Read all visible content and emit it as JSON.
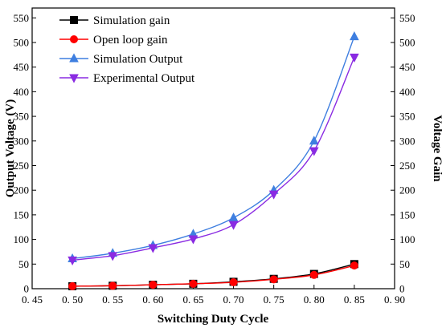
{
  "chart_data": {
    "type": "line",
    "xlabel": "Switching Duty Cycle",
    "ylabel_left": "Output Voltage (V)",
    "ylabel_right": "Voltage Gain",
    "xlim": [
      0.45,
      0.9
    ],
    "ylim": [
      0,
      570
    ],
    "x_ticks": [
      "0. 45",
      "0. 50",
      "0. 55",
      "0. 60",
      "0. 65",
      "0. 70",
      "0. 75",
      "0. 80",
      "0. 85",
      "0. 90"
    ],
    "x_tick_values": [
      0.45,
      0.5,
      0.55,
      0.6,
      0.65,
      0.7,
      0.75,
      0.8,
      0.85,
      0.9
    ],
    "y_ticks": [
      0,
      50,
      100,
      150,
      200,
      250,
      300,
      350,
      400,
      450,
      500,
      550
    ],
    "grid": false,
    "legend_position": "top-left",
    "x": [
      0.5,
      0.55,
      0.6,
      0.65,
      0.7,
      0.75,
      0.8,
      0.85
    ],
    "series": [
      {
        "name": "Simulation gain",
        "color": "#000000",
        "marker": "square",
        "values": [
          5,
          6,
          8,
          10,
          14,
          20,
          30,
          50
        ]
      },
      {
        "name": "Open loop gain",
        "color": "#ff0000",
        "marker": "circle",
        "values": [
          5,
          6,
          8,
          10,
          13,
          19,
          28,
          47
        ]
      },
      {
        "name": "Simulation Output",
        "color": "#3f7fe0",
        "marker": "triangle-up",
        "values": [
          61,
          72,
          88,
          111,
          144,
          200,
          300,
          512
        ]
      },
      {
        "name": "Experimental Output",
        "color": "#8a2be2",
        "marker": "triangle-down",
        "values": [
          58,
          67,
          83,
          101,
          130,
          192,
          280,
          470
        ]
      }
    ]
  }
}
